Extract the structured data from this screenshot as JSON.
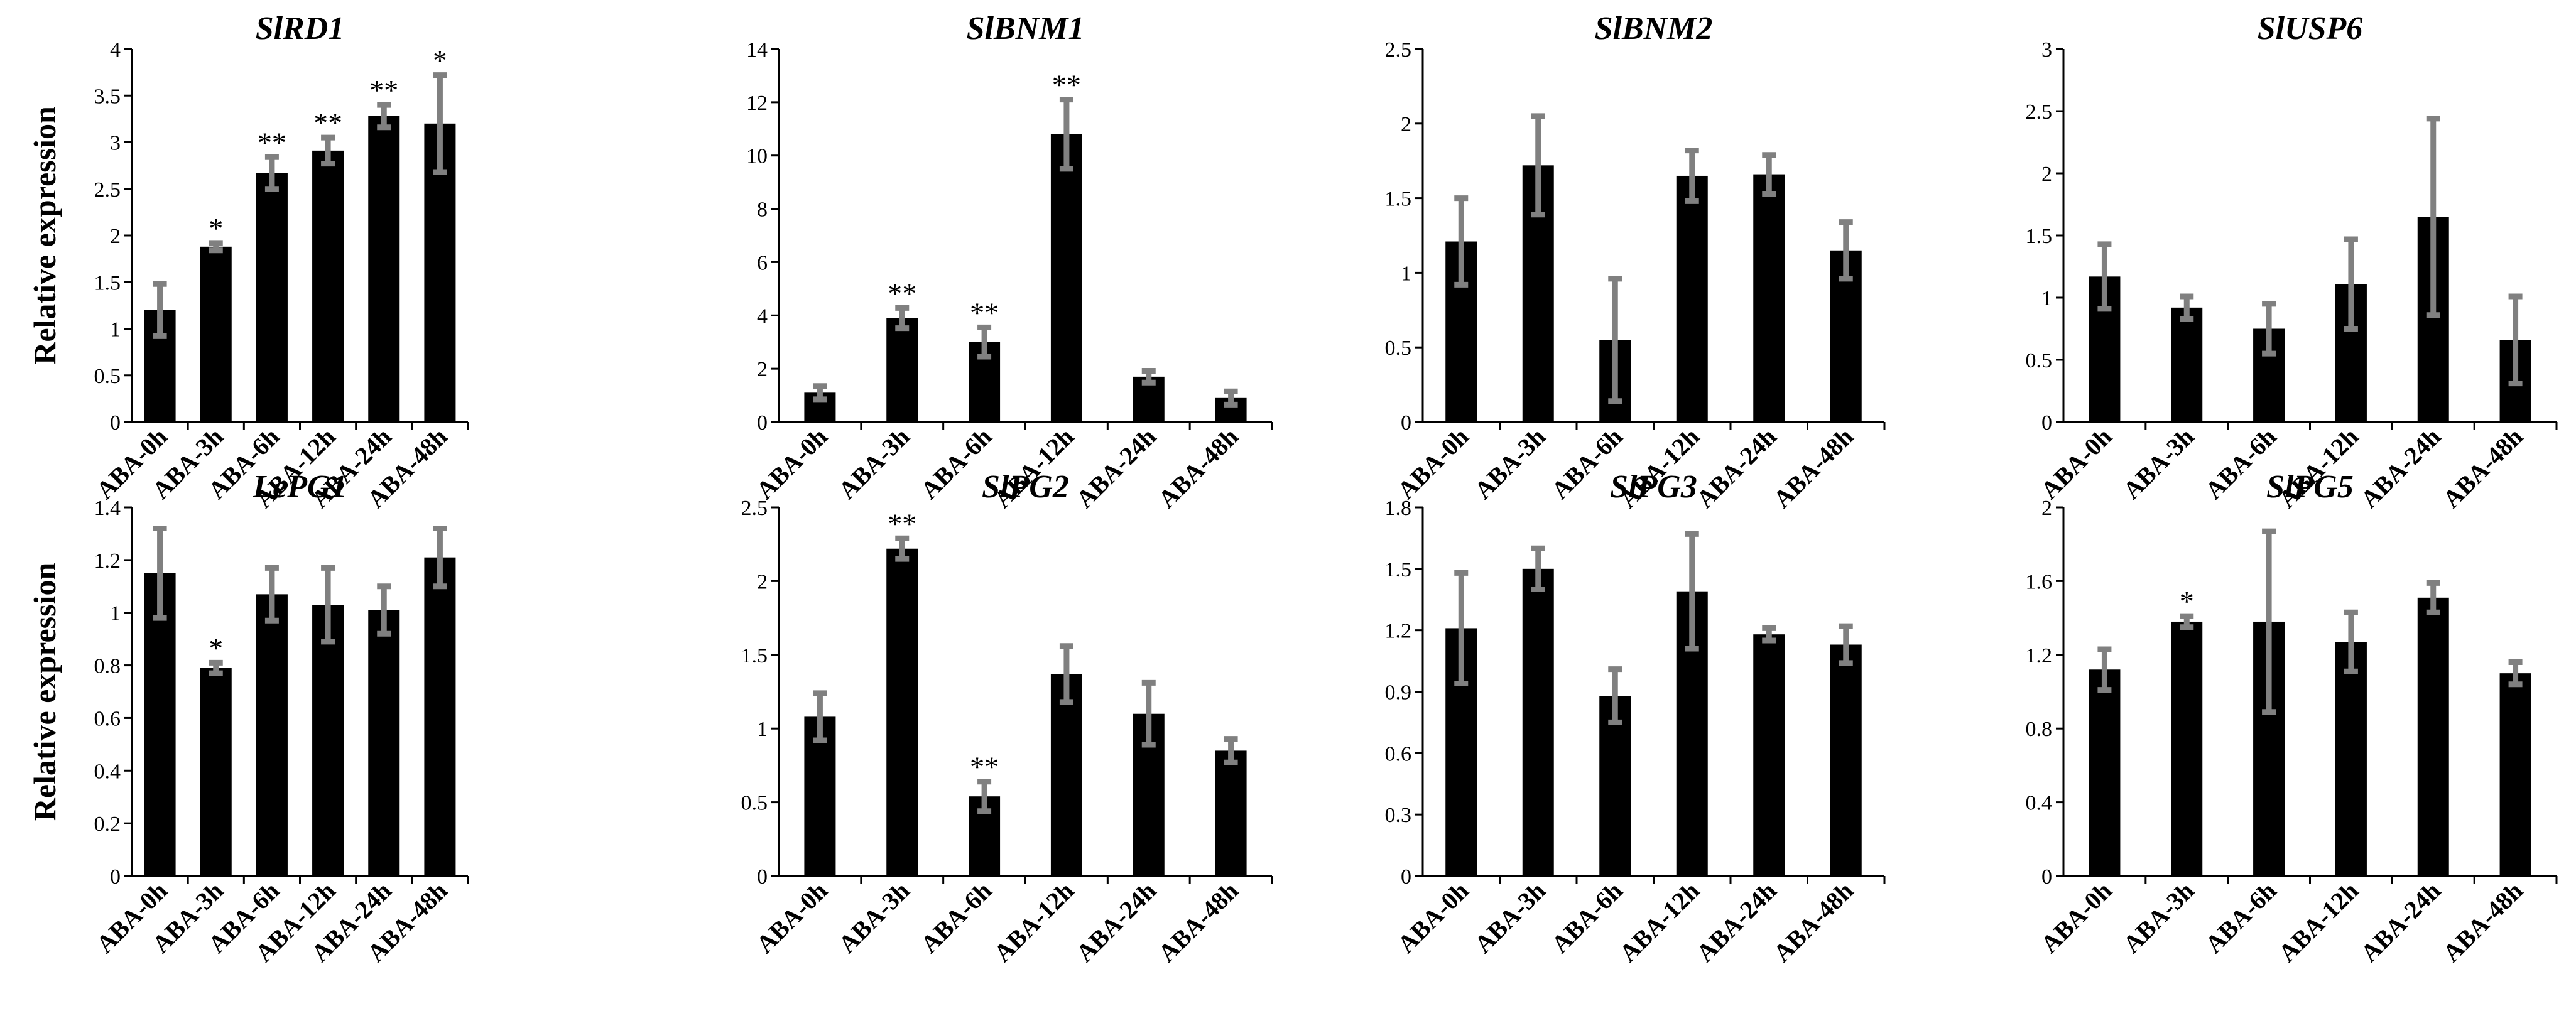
{
  "colors": {
    "bar": "#000000",
    "error_bar": "#808080",
    "axis": "#000000",
    "background": "#ffffff"
  },
  "chart_data": [
    {
      "type": "bar",
      "title": "SlRD1",
      "ylabel": "Relative expression",
      "ylim": [
        0,
        4
      ],
      "ytick_step": 0.5,
      "yticks": [
        "0",
        "0.5",
        "1",
        "1.5",
        "2",
        "2.5",
        "3",
        "3.5",
        "4"
      ],
      "categories": [
        "ABA-0h",
        "ABA-3h",
        "ABA-6h",
        "ABA-12h",
        "ABA-24h",
        "ABA-48h"
      ],
      "values": [
        1.2,
        1.88,
        2.67,
        2.91,
        3.28,
        3.2
      ],
      "errors": [
        0.28,
        0.04,
        0.17,
        0.14,
        0.12,
        0.52
      ],
      "significance": [
        "",
        "*",
        "**",
        "**",
        "**",
        "*"
      ]
    },
    {
      "type": "bar",
      "title": "SlBNM1",
      "ylabel": "",
      "ylim": [
        0,
        14
      ],
      "ytick_step": 2,
      "yticks": [
        "0",
        "2",
        "4",
        "6",
        "8",
        "10",
        "12",
        "14"
      ],
      "categories": [
        "ABA-0h",
        "ABA-3h",
        "ABA-6h",
        "ABA-12h",
        "ABA-24h",
        "ABA-48h"
      ],
      "values": [
        1.1,
        3.9,
        3.0,
        10.8,
        1.7,
        0.9
      ],
      "errors": [
        0.25,
        0.38,
        0.55,
        1.3,
        0.22,
        0.25
      ],
      "significance": [
        "",
        "**",
        "**",
        "**",
        "",
        ""
      ]
    },
    {
      "type": "bar",
      "title": "SlBNM2",
      "ylabel": "",
      "ylim": [
        0,
        2.5
      ],
      "ytick_step": 0.5,
      "yticks": [
        "0",
        "0.5",
        "1",
        "1.5",
        "2",
        "2.5"
      ],
      "categories": [
        "ABA-0h",
        "ABA-3h",
        "ABA-6h",
        "ABA-12h",
        "ABA-24h",
        "ABA-48h"
      ],
      "values": [
        1.21,
        1.72,
        0.55,
        1.65,
        1.66,
        1.15
      ],
      "errors": [
        0.29,
        0.33,
        0.41,
        0.17,
        0.13,
        0.19
      ],
      "significance": [
        "",
        "",
        "",
        "",
        "",
        ""
      ]
    },
    {
      "type": "bar",
      "title": "SlUSP6",
      "ylabel": "",
      "ylim": [
        0,
        3
      ],
      "ytick_step": 0.5,
      "yticks": [
        "0",
        "0.5",
        "1",
        "1.5",
        "2",
        "2.5",
        "3"
      ],
      "categories": [
        "ABA-0h",
        "ABA-3h",
        "ABA-6h",
        "ABA-12h",
        "ABA-24h",
        "ABA-48h"
      ],
      "values": [
        1.17,
        0.92,
        0.75,
        1.11,
        1.65,
        0.66
      ],
      "errors": [
        0.26,
        0.09,
        0.2,
        0.36,
        0.79,
        0.35
      ],
      "significance": [
        "",
        "",
        "",
        "",
        "",
        ""
      ]
    },
    {
      "type": "bar",
      "title": "LePG1",
      "ylabel": "Relative expression",
      "ylim": [
        0,
        1.4
      ],
      "ytick_step": 0.2,
      "yticks": [
        "0",
        "0.2",
        "0.4",
        "0.6",
        "0.8",
        "1",
        "1.2",
        "1.4"
      ],
      "categories": [
        "ABA-0h",
        "ABA-3h",
        "ABA-6h",
        "ABA-12h",
        "ABA-24h",
        "ABA-48h"
      ],
      "values": [
        1.15,
        0.79,
        1.07,
        1.03,
        1.01,
        1.21
      ],
      "errors": [
        0.17,
        0.02,
        0.1,
        0.14,
        0.09,
        0.11
      ],
      "significance": [
        "",
        "*",
        "",
        "",
        "",
        ""
      ]
    },
    {
      "type": "bar",
      "title": "SlPG2",
      "ylabel": "",
      "ylim": [
        0,
        2.5
      ],
      "ytick_step": 0.5,
      "yticks": [
        "0",
        "0.5",
        "1",
        "1.5",
        "2",
        "2.5"
      ],
      "categories": [
        "ABA-0h",
        "ABA-3h",
        "ABA-6h",
        "ABA-12h",
        "ABA-24h",
        "ABA-48h"
      ],
      "values": [
        1.08,
        2.22,
        0.54,
        1.37,
        1.1,
        0.85
      ],
      "errors": [
        0.16,
        0.07,
        0.1,
        0.19,
        0.21,
        0.08
      ],
      "significance": [
        "",
        "**",
        "**",
        "",
        "",
        ""
      ]
    },
    {
      "type": "bar",
      "title": "SlPG3",
      "ylabel": "",
      "ylim": [
        0,
        1.8
      ],
      "ytick_step": 0.3,
      "yticks": [
        "0",
        "0.3",
        "0.6",
        "0.9",
        "1.2",
        "1.5",
        "1.8"
      ],
      "categories": [
        "ABA-0h",
        "ABA-3h",
        "ABA-6h",
        "ABA-12h",
        "ABA-24h",
        "ABA-48h"
      ],
      "values": [
        1.21,
        1.5,
        0.88,
        1.39,
        1.18,
        1.13
      ],
      "errors": [
        0.27,
        0.1,
        0.13,
        0.28,
        0.03,
        0.09
      ],
      "significance": [
        "",
        "",
        "",
        "",
        "",
        ""
      ]
    },
    {
      "type": "bar",
      "title": "SlPG5",
      "ylabel": "",
      "ylim": [
        0,
        2
      ],
      "ytick_step": 0.4,
      "yticks": [
        "0",
        "0.4",
        "0.8",
        "1.2",
        "1.6",
        "2"
      ],
      "categories": [
        "ABA-0h",
        "ABA-3h",
        "ABA-6h",
        "ABA-12h",
        "ABA-24h",
        "ABA-48h"
      ],
      "values": [
        1.12,
        1.38,
        1.38,
        1.27,
        1.51,
        1.1
      ],
      "errors": [
        0.11,
        0.03,
        0.49,
        0.16,
        0.08,
        0.06
      ],
      "significance": [
        "",
        "*",
        "",
        "",
        "",
        ""
      ]
    }
  ]
}
